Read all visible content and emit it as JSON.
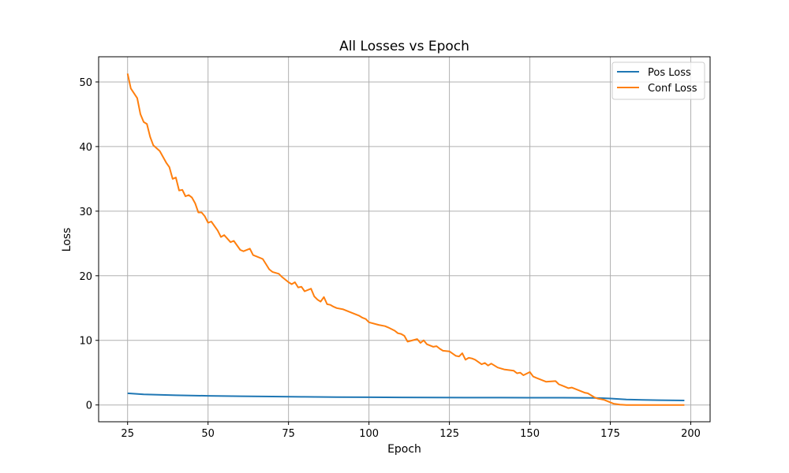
{
  "chart_data": {
    "type": "line",
    "title": "All Losses vs Epoch",
    "xlabel": "Epoch",
    "ylabel": "Loss",
    "xlim": [
      16,
      206
    ],
    "ylim": [
      -2.6,
      53.9
    ],
    "xticks": [
      25,
      50,
      75,
      100,
      125,
      150,
      175,
      200
    ],
    "yticks": [
      0,
      10,
      20,
      30,
      40,
      50
    ],
    "grid": true,
    "legend_position": "top-right",
    "series": [
      {
        "name": "Pos Loss",
        "color": "#1f77b4",
        "x": [
          25,
          30,
          40,
          50,
          60,
          70,
          80,
          90,
          100,
          110,
          120,
          130,
          140,
          150,
          160,
          170,
          175,
          180,
          185,
          190,
          198
        ],
        "y": [
          1.8,
          1.65,
          1.5,
          1.42,
          1.35,
          1.3,
          1.26,
          1.22,
          1.19,
          1.17,
          1.15,
          1.14,
          1.13,
          1.12,
          1.12,
          1.1,
          1.0,
          0.85,
          0.78,
          0.74,
          0.7
        ]
      },
      {
        "name": "Conf Loss",
        "color": "#ff7f0e",
        "x": [
          25,
          26,
          28,
          29,
          30,
          31,
          32,
          33,
          35,
          37,
          38,
          39,
          40,
          41,
          42,
          43,
          44,
          45,
          46,
          47,
          48,
          49,
          50,
          51,
          53,
          54,
          55,
          57,
          58,
          60,
          61,
          63,
          64,
          65,
          67,
          68,
          69,
          70,
          72,
          73,
          75,
          76,
          77,
          78,
          79,
          80,
          82,
          83,
          84,
          85,
          86,
          87,
          88,
          89,
          90,
          92,
          95,
          97,
          98,
          99,
          100,
          103,
          105,
          106,
          108,
          109,
          110,
          111,
          112,
          115,
          116,
          117,
          118,
          120,
          121,
          122,
          123,
          125,
          127,
          128,
          129,
          130,
          131,
          132,
          133,
          135,
          136,
          137,
          138,
          140,
          142,
          145,
          146,
          147,
          148,
          150,
          151,
          152,
          153,
          155,
          158,
          159,
          160,
          161,
          162,
          163,
          164,
          165,
          167,
          168,
          169,
          170,
          171,
          173,
          175,
          176,
          178,
          180,
          185,
          190,
          198
        ],
        "y": [
          51.3,
          49.0,
          47.5,
          45.0,
          43.8,
          43.5,
          41.5,
          40.2,
          39.3,
          37.5,
          36.8,
          35.0,
          35.2,
          33.2,
          33.3,
          32.3,
          32.5,
          32.1,
          31.2,
          29.8,
          29.8,
          29.2,
          28.2,
          28.4,
          27.0,
          26.0,
          26.3,
          25.2,
          25.4,
          24.0,
          23.8,
          24.2,
          23.2,
          23.0,
          22.6,
          21.8,
          21.0,
          20.6,
          20.3,
          19.8,
          19.0,
          18.7,
          19.0,
          18.2,
          18.3,
          17.6,
          18.0,
          16.8,
          16.3,
          16.0,
          16.7,
          15.6,
          15.5,
          15.2,
          15.0,
          14.8,
          14.2,
          13.8,
          13.5,
          13.3,
          12.8,
          12.4,
          12.2,
          12.0,
          11.5,
          11.1,
          11.0,
          10.7,
          9.8,
          10.2,
          9.6,
          10.0,
          9.4,
          9.0,
          9.1,
          8.7,
          8.4,
          8.3,
          7.6,
          7.5,
          8.0,
          7.0,
          7.3,
          7.2,
          7.0,
          6.3,
          6.5,
          6.1,
          6.4,
          5.8,
          5.5,
          5.3,
          4.9,
          5.0,
          4.6,
          5.1,
          4.4,
          4.2,
          4.0,
          3.6,
          3.7,
          3.2,
          3.0,
          2.8,
          2.6,
          2.7,
          2.5,
          2.3,
          1.9,
          1.8,
          1.5,
          1.2,
          1.0,
          0.8,
          0.4,
          0.2,
          0.05,
          0.0,
          0.0,
          0.0,
          0.0
        ]
      }
    ]
  }
}
